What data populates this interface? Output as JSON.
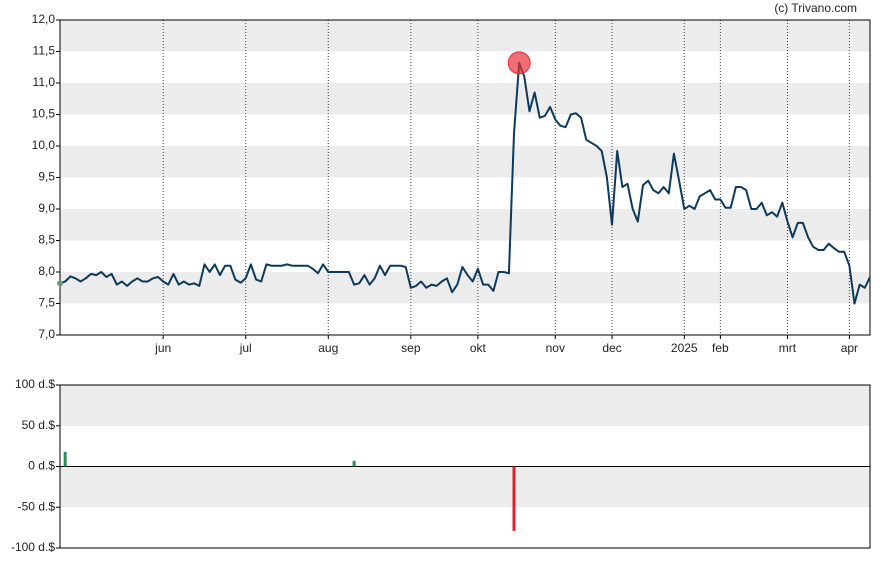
{
  "chart_data": [
    {
      "type": "line",
      "credit": "(c) Trivano.com",
      "color": "#0d3a5a",
      "highlight_color": "#e8303c",
      "values": [
        7.82,
        7.85,
        7.93,
        7.9,
        7.85,
        7.9,
        7.97,
        7.95,
        8.0,
        7.92,
        7.97,
        7.8,
        7.85,
        7.78,
        7.85,
        7.9,
        7.85,
        7.85,
        7.9,
        7.92,
        7.85,
        7.8,
        7.97,
        7.8,
        7.85,
        7.8,
        7.82,
        7.78,
        8.12,
        8.0,
        8.12,
        7.95,
        8.1,
        8.1,
        7.88,
        7.83,
        7.9,
        8.12,
        7.88,
        7.85,
        8.12,
        8.1,
        8.1,
        8.1,
        8.12,
        8.1,
        8.1,
        8.1,
        8.1,
        8.05,
        7.98,
        8.12,
        8.0,
        8.0,
        8.0,
        8.0,
        8.0,
        7.8,
        7.82,
        7.95,
        7.8,
        7.9,
        8.1,
        7.95,
        8.1,
        8.1,
        8.1,
        8.08,
        7.75,
        7.78,
        7.85,
        7.75,
        7.8,
        7.78,
        7.85,
        7.9,
        7.68,
        7.8,
        8.08,
        7.95,
        7.85,
        8.05,
        7.8,
        7.8,
        7.7,
        8.0,
        8.0,
        7.98,
        10.2,
        11.32,
        11.1,
        10.55,
        10.85,
        10.45,
        10.48,
        10.62,
        10.42,
        10.32,
        10.3,
        10.5,
        10.52,
        10.45,
        10.1,
        10.05,
        10.0,
        9.92,
        9.5,
        8.75,
        9.92,
        9.35,
        9.4,
        9.0,
        8.8,
        9.38,
        9.45,
        9.3,
        9.25,
        9.35,
        9.25,
        9.88,
        9.45,
        9.0,
        9.05,
        9.0,
        9.2,
        9.25,
        9.3,
        9.15,
        9.15,
        9.02,
        9.02,
        9.35,
        9.35,
        9.3,
        9.0,
        9.0,
        9.1,
        8.9,
        8.95,
        8.88,
        9.1,
        8.8,
        8.55,
        8.78,
        8.78,
        8.55,
        8.4,
        8.35,
        8.35,
        8.45,
        8.38,
        8.32,
        8.32,
        8.1,
        7.5,
        7.8,
        7.75,
        7.92
      ],
      "xlim": [
        0,
        157
      ],
      "xticks": [
        {
          "value": 20,
          "label": "jun"
        },
        {
          "value": 36,
          "label": "jul"
        },
        {
          "value": 52,
          "label": "aug"
        },
        {
          "value": 68,
          "label": "sep"
        },
        {
          "value": 81,
          "label": "okt"
        },
        {
          "value": 96,
          "label": "nov"
        },
        {
          "value": 107,
          "label": "dec"
        },
        {
          "value": 121,
          "label": "2025"
        },
        {
          "value": 128,
          "label": "feb"
        },
        {
          "value": 141,
          "label": "mrt"
        },
        {
          "value": 153,
          "label": "apr"
        }
      ],
      "ylim": [
        7,
        12
      ],
      "yticks": [
        {
          "value": 7,
          "label": "7,0"
        },
        {
          "value": 7.5,
          "label": "7,5"
        },
        {
          "value": 8,
          "label": "8,0"
        },
        {
          "value": 8.5,
          "label": "8,5"
        },
        {
          "value": 9,
          "label": "9,0"
        },
        {
          "value": 9.5,
          "label": "9,5"
        },
        {
          "value": 10,
          "label": "10,0"
        },
        {
          "value": 10.5,
          "label": "10,5"
        },
        {
          "value": 11,
          "label": "11,0"
        },
        {
          "value": 11.5,
          "label": "11,5"
        },
        {
          "value": 12,
          "label": "12,0"
        }
      ]
    },
    {
      "type": "bar",
      "x": [
        1,
        57,
        88
      ],
      "values": [
        18,
        7,
        -79
      ],
      "colors": [
        "#2e8b57",
        "#2e8b57",
        "#e0202e"
      ],
      "xlim": [
        0,
        157
      ],
      "ylim": [
        -100,
        100
      ],
      "yticks": [
        {
          "value": 100,
          "label": "100 d.$"
        },
        {
          "value": 50,
          "label": "50 d.$"
        },
        {
          "value": 0,
          "label": "0 d.$"
        },
        {
          "value": -50,
          "label": "-50 d.$"
        },
        {
          "value": -100,
          "label": "-100 d.$"
        }
      ]
    }
  ]
}
